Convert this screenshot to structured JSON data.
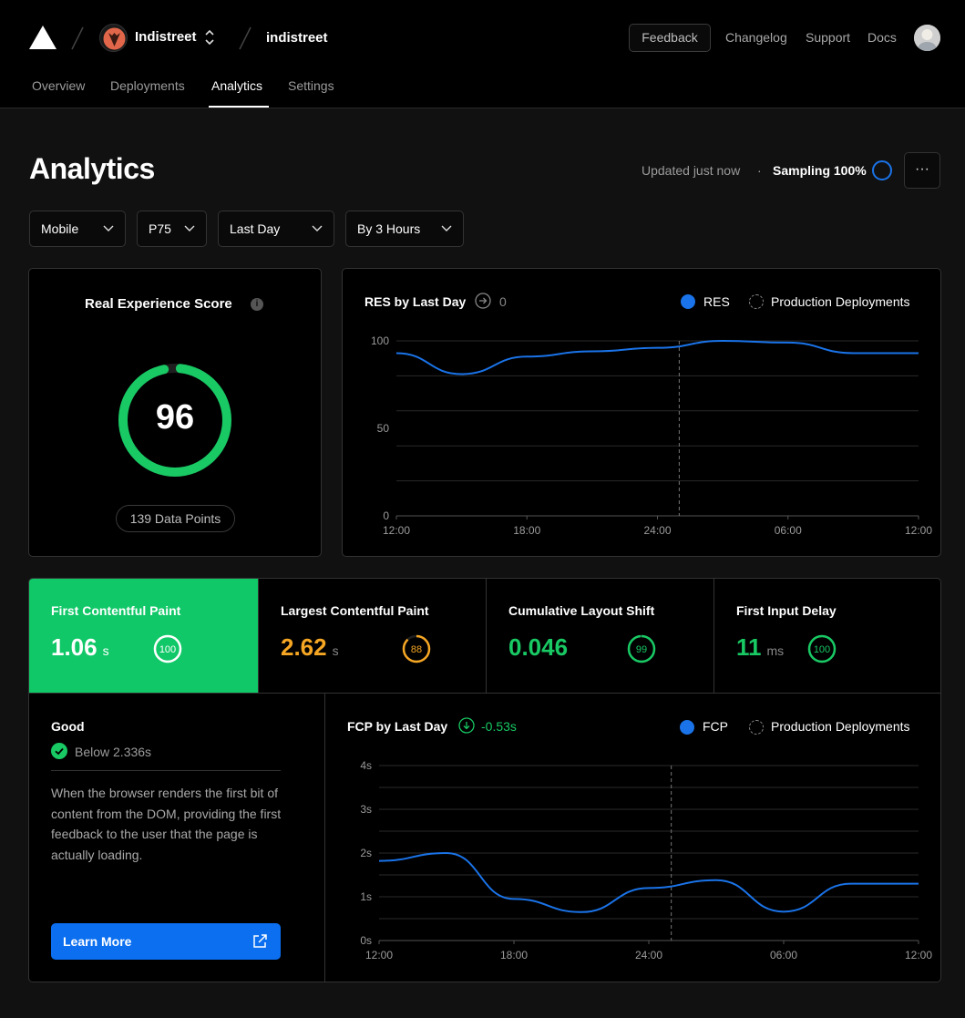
{
  "header": {
    "team_name": "Indistreet",
    "project_name": "indistreet",
    "feedback_label": "Feedback",
    "links": [
      "Changelog",
      "Support",
      "Docs"
    ],
    "tabs": [
      "Overview",
      "Deployments",
      "Analytics",
      "Settings"
    ],
    "active_tab": "Analytics"
  },
  "page": {
    "title": "Analytics",
    "updated": "Updated just now",
    "separator": "·",
    "sampling": "Sampling 100%",
    "more_label": "···"
  },
  "filters": {
    "device": "Mobile",
    "percentile": "P75",
    "range": "Last Day",
    "granularity": "By 3 Hours"
  },
  "score_card": {
    "title": "Real Experience Score",
    "info": "i",
    "score": "96",
    "score_value": 96,
    "data_points": "139 Data Points",
    "color": "#18c964"
  },
  "metrics": [
    {
      "name": "First Contentful Paint",
      "value": "1.06",
      "unit": "s",
      "score": "100",
      "score_value": 100,
      "color": "#ffffff",
      "selected": true
    },
    {
      "name": "Largest Contentful Paint",
      "value": "2.62",
      "unit": "s",
      "score": "88",
      "score_value": 88,
      "color": "#f5a623",
      "selected": false
    },
    {
      "name": "Cumulative Layout Shift",
      "value": "0.046",
      "unit": "",
      "score": "99",
      "score_value": 99,
      "color": "#18c964",
      "selected": false
    },
    {
      "name": "First Input Delay",
      "value": "11",
      "unit": "ms",
      "score": "100",
      "score_value": 100,
      "color": "#18c964",
      "selected": false
    }
  ],
  "detail": {
    "rating": "Good",
    "threshold": "Below 2.336s",
    "description": "When the browser renders the first bit of content from the DOM, providing the first feedback to the user that the page is actually loading.",
    "learn_more": "Learn More"
  },
  "colors": {
    "accent": "#0b6ff0",
    "good": "#18c964",
    "warn": "#f5a623",
    "line": "#1a73e8"
  },
  "chart_data": [
    {
      "type": "line",
      "title": "RES by Last Day",
      "change": "0",
      "x": [
        "12:00",
        "15:00",
        "18:00",
        "21:00",
        "24:00",
        "03:00",
        "06:00",
        "09:00",
        "12:00"
      ],
      "x_tick_labels": [
        "12:00",
        "18:00",
        "24:00",
        "06:00",
        "12:00"
      ],
      "y_tick_labels": [
        "100",
        "50",
        "0"
      ],
      "ylim": [
        0,
        100
      ],
      "series": [
        {
          "name": "RES",
          "values": [
            93,
            81,
            91,
            94,
            96,
            100,
            99,
            93,
            93
          ]
        }
      ],
      "legend": [
        "RES",
        "Production Deployments"
      ],
      "deployment_marker_x": 25,
      "x_range_hours": [
        12,
        36
      ],
      "grid": true,
      "legend_position": "top-right"
    },
    {
      "type": "line",
      "title": "FCP by Last Day",
      "change": "-0.53s",
      "x": [
        "12:00",
        "15:00",
        "18:00",
        "21:00",
        "24:00",
        "03:00",
        "06:00",
        "09:00",
        "12:00"
      ],
      "x_tick_labels": [
        "12:00",
        "18:00",
        "24:00",
        "06:00",
        "12:00"
      ],
      "y_tick_labels": [
        "4s",
        "3s",
        "2s",
        "1s",
        "0s"
      ],
      "ylim": [
        0,
        4
      ],
      "series": [
        {
          "name": "FCP",
          "values": [
            1.82,
            2.0,
            0.95,
            0.65,
            1.2,
            1.38,
            0.66,
            1.3,
            1.3
          ]
        }
      ],
      "legend": [
        "FCP",
        "Production Deployments"
      ],
      "deployment_marker_x": 25,
      "x_range_hours": [
        12,
        36
      ],
      "grid": true,
      "legend_position": "top-right"
    }
  ]
}
